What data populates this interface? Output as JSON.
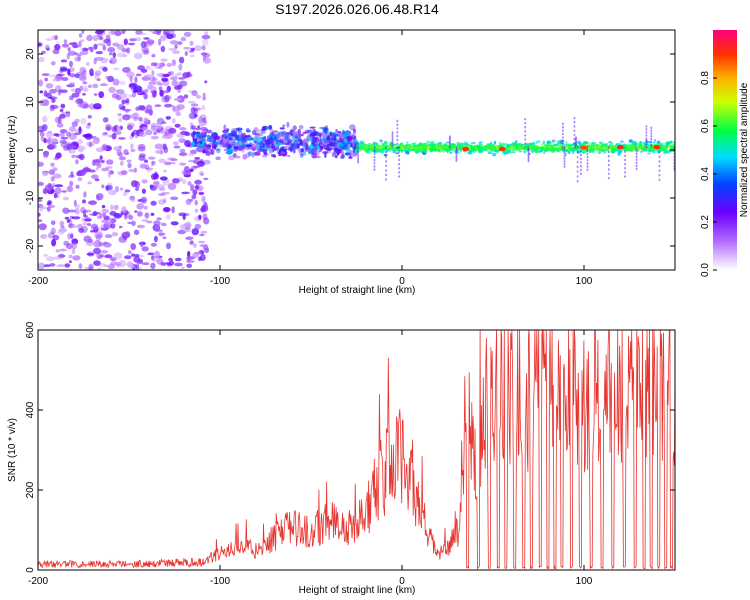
{
  "figure_title": "S197.2026.026.06.48.R14",
  "chart_data": [
    {
      "type": "heatmap",
      "title": "S197.2026.026.06.48.R14",
      "xlabel": "Height of straight line (km)",
      "ylabel": "Frequency (Hz)",
      "xlim": [
        -200,
        150
      ],
      "ylim": [
        -25,
        25
      ],
      "x_ticks": [
        -200,
        -100,
        0,
        100
      ],
      "y_ticks": [
        -20,
        -10,
        0,
        10,
        20
      ],
      "colorbar": {
        "label": "Normalized spectral amplitude",
        "range": [
          0,
          1
        ],
        "ticks": [
          0.0,
          0.2,
          0.4,
          0.6,
          0.8
        ],
        "tick_labels": [
          "0.0",
          "0.2",
          "0.4",
          "0.6",
          "0.8"
        ]
      },
      "regions": [
        {
          "x_range": [
            -200,
            -107
          ],
          "description": "scattered noise across all frequencies",
          "amplitude": 0.15
        },
        {
          "x_range": [
            -115,
            -25
          ],
          "center_freq_hz": 1.5,
          "spread_hz": 8,
          "amplitude": 0.3
        },
        {
          "x_range": [
            -25,
            150
          ],
          "center_freq_hz": 0.5,
          "spread_hz": 2,
          "amplitude": 0.5
        }
      ],
      "peak_points": [
        {
          "x": 35,
          "freq": 0.2,
          "amp": 0.9
        },
        {
          "x": 55,
          "freq": 0.2,
          "amp": 0.9
        },
        {
          "x": 100,
          "freq": 0.5,
          "amp": 0.88
        },
        {
          "x": 120,
          "freq": 0.6,
          "amp": 0.92
        },
        {
          "x": 140,
          "freq": 0.6,
          "amp": 0.9
        }
      ]
    },
    {
      "type": "line",
      "title": "",
      "xlabel": "Height of straight line (km)",
      "ylabel": "SNR (10 * v/v)",
      "xlim": [
        -200,
        150
      ],
      "ylim": [
        0,
        600
      ],
      "x_ticks": [
        -200,
        -100,
        0,
        100
      ],
      "y_ticks": [
        0,
        200,
        400,
        600
      ],
      "series": [
        {
          "name": "SNR",
          "color": "#e8332e",
          "profile_x": [
            -200,
            -150,
            -110,
            -100,
            -90,
            -80,
            -70,
            -60,
            -50,
            -40,
            -30,
            -20,
            -12,
            -5,
            0,
            5,
            10,
            15,
            20,
            25,
            30,
            33,
            35,
            40,
            45,
            50,
            60,
            70,
            80,
            90,
            100,
            110,
            120,
            130,
            140,
            150
          ],
          "profile_y": [
            15,
            15,
            20,
            40,
            60,
            50,
            80,
            110,
            90,
            130,
            100,
            140,
            230,
            270,
            280,
            240,
            150,
            80,
            40,
            50,
            90,
            150,
            420,
            300,
            420,
            430,
            460,
            440,
            480,
            470,
            440,
            480,
            460,
            480,
            470,
            470
          ],
          "dropout_x": [
            36,
            42,
            48,
            53,
            57,
            62,
            67,
            71,
            76,
            80,
            84,
            88,
            93,
            98,
            104,
            110,
            116,
            122,
            128,
            133,
            137,
            141,
            145,
            148
          ]
        }
      ]
    }
  ]
}
